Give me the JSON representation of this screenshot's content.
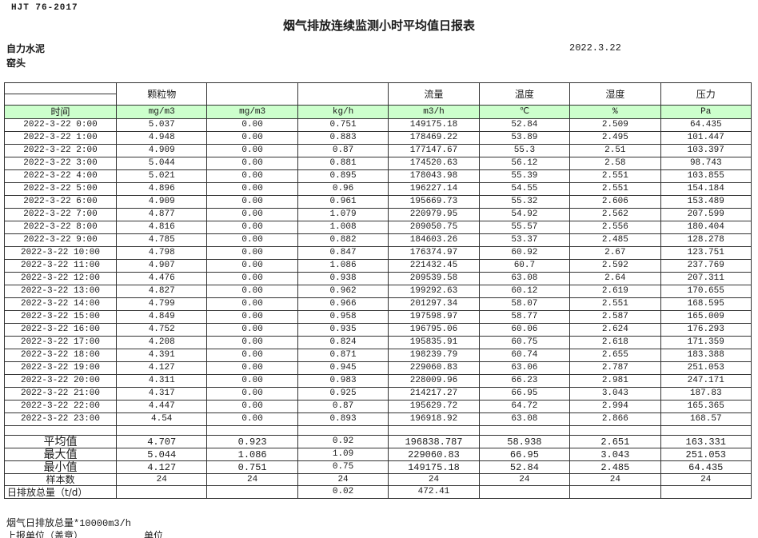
{
  "page": {
    "standard_code": "HJT 76-2017",
    "title": "烟气排放连续监测小时平均值日报表",
    "company": "自力水泥",
    "station": "窑头",
    "date": "2022.3.22"
  },
  "colors": {
    "header_green": "#CCFFCC",
    "border": "#333333"
  },
  "table": {
    "group_headers": [
      "颗粒物",
      "",
      "",
      "流量",
      "温度",
      "湿度",
      "压力"
    ],
    "unit_row": [
      "时间",
      "mg/m3",
      "mg/m3",
      "kg/h",
      "m3/h",
      "℃",
      "%",
      "Pa"
    ],
    "rows": [
      [
        "2022-3-22 0:00",
        "5.037",
        "0.00",
        "0.751",
        "149175.18",
        "52.84",
        "2.509",
        "64.435"
      ],
      [
        "2022-3-22 1:00",
        "4.948",
        "0.00",
        "0.883",
        "178469.22",
        "53.89",
        "2.495",
        "101.447"
      ],
      [
        "2022-3-22 2:00",
        "4.909",
        "0.00",
        "0.87",
        "177147.67",
        "55.3",
        "2.51",
        "103.397"
      ],
      [
        "2022-3-22 3:00",
        "5.044",
        "0.00",
        "0.881",
        "174520.63",
        "56.12",
        "2.58",
        "98.743"
      ],
      [
        "2022-3-22 4:00",
        "5.021",
        "0.00",
        "0.895",
        "178043.98",
        "55.39",
        "2.551",
        "103.855"
      ],
      [
        "2022-3-22 5:00",
        "4.896",
        "0.00",
        "0.96",
        "196227.14",
        "54.55",
        "2.551",
        "154.184"
      ],
      [
        "2022-3-22 6:00",
        "4.909",
        "0.00",
        "0.961",
        "195669.73",
        "55.32",
        "2.606",
        "153.489"
      ],
      [
        "2022-3-22 7:00",
        "4.877",
        "0.00",
        "1.079",
        "220979.95",
        "54.92",
        "2.562",
        "207.599"
      ],
      [
        "2022-3-22 8:00",
        "4.816",
        "0.00",
        "1.008",
        "209050.75",
        "55.57",
        "2.556",
        "180.404"
      ],
      [
        "2022-3-22 9:00",
        "4.785",
        "0.00",
        "0.882",
        "184603.26",
        "53.37",
        "2.485",
        "128.278"
      ],
      [
        "2022-3-22 10:00",
        "4.798",
        "0.00",
        "0.847",
        "176374.97",
        "60.92",
        "2.67",
        "123.751"
      ],
      [
        "2022-3-22 11:00",
        "4.907",
        "0.00",
        "1.086",
        "221432.45",
        "60.7",
        "2.592",
        "237.769"
      ],
      [
        "2022-3-22 12:00",
        "4.476",
        "0.00",
        "0.938",
        "209539.58",
        "63.08",
        "2.64",
        "207.311"
      ],
      [
        "2022-3-22 13:00",
        "4.827",
        "0.00",
        "0.962",
        "199292.63",
        "60.12",
        "2.619",
        "170.655"
      ],
      [
        "2022-3-22 14:00",
        "4.799",
        "0.00",
        "0.966",
        "201297.34",
        "58.07",
        "2.551",
        "168.595"
      ],
      [
        "2022-3-22 15:00",
        "4.849",
        "0.00",
        "0.958",
        "197598.97",
        "58.77",
        "2.587",
        "165.009"
      ],
      [
        "2022-3-22 16:00",
        "4.752",
        "0.00",
        "0.935",
        "196795.06",
        "60.06",
        "2.624",
        "176.293"
      ],
      [
        "2022-3-22 17:00",
        "4.208",
        "0.00",
        "0.824",
        "195835.91",
        "60.75",
        "2.618",
        "171.359"
      ],
      [
        "2022-3-22 18:00",
        "4.391",
        "0.00",
        "0.871",
        "198239.79",
        "60.74",
        "2.655",
        "183.388"
      ],
      [
        "2022-3-22 19:00",
        "4.127",
        "0.00",
        "0.945",
        "229060.83",
        "63.06",
        "2.787",
        "251.053"
      ],
      [
        "2022-3-22 20:00",
        "4.311",
        "0.00",
        "0.983",
        "228009.96",
        "66.23",
        "2.981",
        "247.171"
      ],
      [
        "2022-3-22 21:00",
        "4.317",
        "0.00",
        "0.925",
        "214217.27",
        "66.95",
        "3.043",
        "187.83"
      ],
      [
        "2022-3-22 22:00",
        "4.447",
        "0.00",
        "0.87",
        "195629.72",
        "64.72",
        "2.994",
        "165.365"
      ],
      [
        "2022-3-22 23:00",
        "4.54",
        "0.00",
        "0.893",
        "196918.92",
        "63.08",
        "2.866",
        "168.57"
      ]
    ],
    "summary": [
      {
        "label": "平均值",
        "values": [
          "4.707",
          "0.923",
          "0.92",
          "196838.787",
          "58.938",
          "2.651",
          "163.331"
        ]
      },
      {
        "label": "最大值",
        "values": [
          "5.044",
          "1.086",
          "1.09",
          "229060.83",
          "66.95",
          "3.043",
          "251.053"
        ]
      },
      {
        "label": "最小值",
        "values": [
          "4.127",
          "0.751",
          "0.75",
          "149175.18",
          "52.84",
          "2.485",
          "64.435"
        ]
      },
      {
        "label": "样本数",
        "values": [
          "24",
          "24",
          "24",
          "24",
          "24",
          "24",
          "24"
        ]
      },
      {
        "label": "日排放总量（t/d）",
        "values": [
          "",
          "",
          "0.02",
          "472.41",
          "",
          "",
          ""
        ]
      }
    ]
  },
  "footer": {
    "note": "烟气日排放总量*10000m3/h",
    "report_unit_label": "上报单位（盖章）",
    "unit_label": "单位"
  }
}
